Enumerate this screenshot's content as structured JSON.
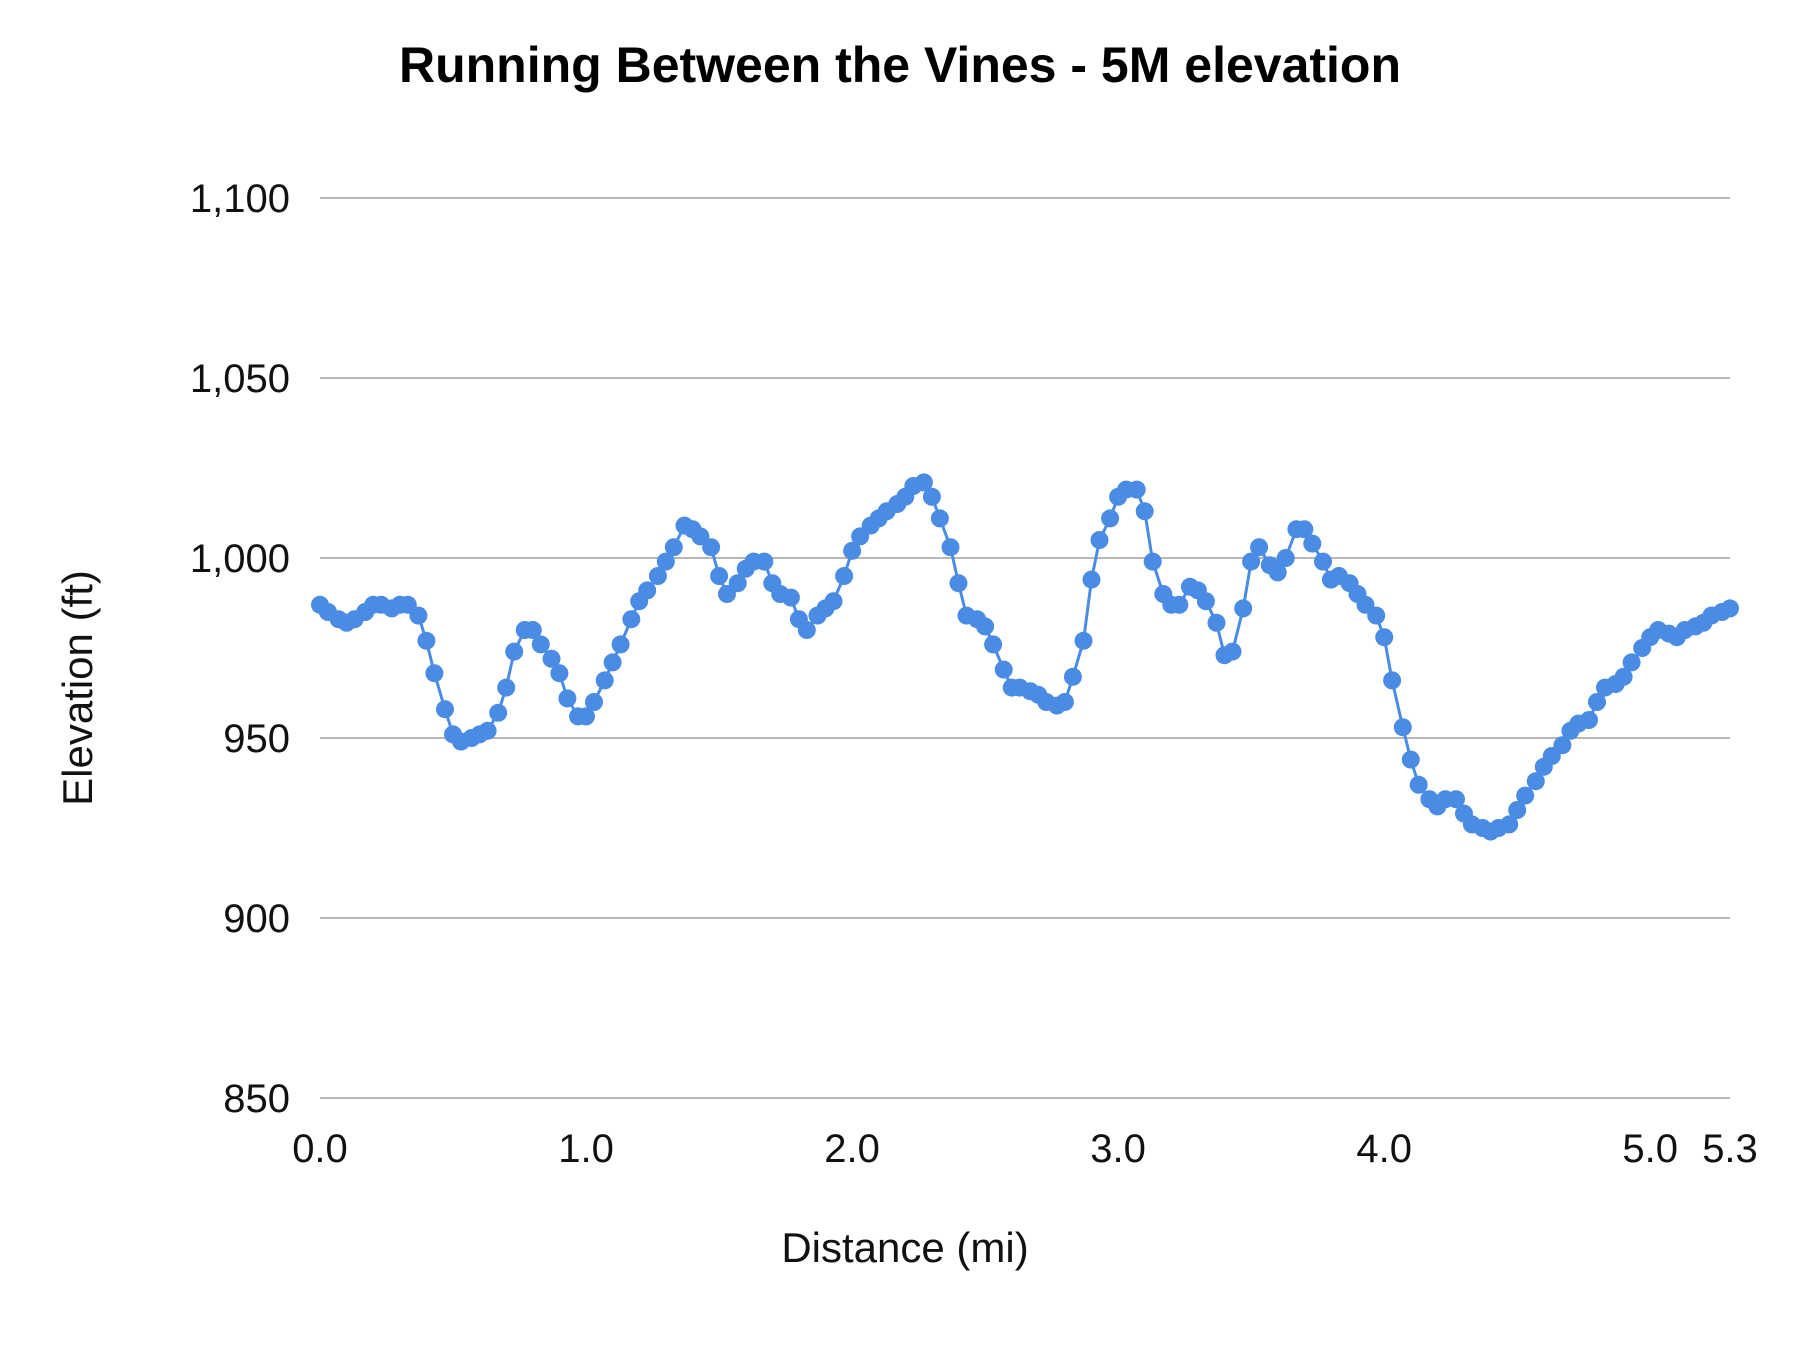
{
  "chart_data": {
    "type": "line",
    "title": "Running Between the Vines - 5M elevation",
    "xlabel": "Distance (mi)",
    "ylabel": "Elevation (ft)",
    "ylim": [
      850,
      1100
    ],
    "xlim": [
      0,
      5.3
    ],
    "y_ticks": [
      "850",
      "900",
      "950",
      "1,000",
      "1,050",
      "1,100"
    ],
    "x_ticks": [
      "0.0",
      "1.0",
      "2.0",
      "3.0",
      "4.0",
      "5.0",
      "5.3"
    ],
    "grid": true,
    "legend": "none",
    "markers": true,
    "series": [
      {
        "color": "#4a8be3",
        "x": [
          0.0,
          0.03,
          0.07,
          0.1,
          0.13,
          0.17,
          0.2,
          0.23,
          0.27,
          0.3,
          0.33,
          0.37,
          0.4,
          0.43,
          0.47,
          0.5,
          0.53,
          0.57,
          0.6,
          0.63,
          0.67,
          0.7,
          0.73,
          0.77,
          0.8,
          0.83,
          0.87,
          0.9,
          0.93,
          0.97,
          1.0,
          1.03,
          1.07,
          1.1,
          1.13,
          1.17,
          1.2,
          1.23,
          1.27,
          1.3,
          1.33,
          1.37,
          1.4,
          1.43,
          1.47,
          1.5,
          1.53,
          1.57,
          1.6,
          1.63,
          1.67,
          1.7,
          1.73,
          1.77,
          1.8,
          1.83,
          1.87,
          1.9,
          1.93,
          1.97,
          2.0,
          2.03,
          2.07,
          2.1,
          2.13,
          2.17,
          2.2,
          2.23,
          2.27,
          2.3,
          2.33,
          2.37,
          2.4,
          2.43,
          2.47,
          2.5,
          2.53,
          2.57,
          2.6,
          2.63,
          2.67,
          2.7,
          2.73,
          2.77,
          2.8,
          2.83,
          2.87,
          2.9,
          2.93,
          2.97,
          3.0,
          3.03,
          3.07,
          3.1,
          3.13,
          3.17,
          3.2,
          3.23,
          3.27,
          3.3,
          3.33,
          3.37,
          3.4,
          3.43,
          3.47,
          3.5,
          3.53,
          3.57,
          3.6,
          3.63,
          3.67,
          3.7,
          3.73,
          3.77,
          3.8,
          3.83,
          3.87,
          3.9,
          3.93,
          3.97,
          4.0,
          4.03,
          4.07,
          4.1,
          4.13,
          4.17,
          4.2,
          4.23,
          4.27,
          4.3,
          4.33,
          4.37,
          4.4,
          4.43,
          4.47,
          4.5,
          4.53,
          4.57,
          4.6,
          4.63,
          4.67,
          4.7,
          4.73,
          4.77,
          4.8,
          4.83,
          4.87,
          4.9,
          4.93,
          4.97,
          5.0,
          5.03,
          5.07,
          5.1,
          5.13,
          5.17,
          5.2,
          5.23,
          5.27,
          5.3
        ],
        "values": [
          987,
          985,
          983,
          982,
          983,
          985,
          987,
          987,
          986,
          987,
          987,
          984,
          977,
          968,
          958,
          951,
          949,
          950,
          951,
          952,
          957,
          964,
          974,
          980,
          980,
          976,
          972,
          968,
          961,
          956,
          956,
          960,
          966,
          971,
          976,
          983,
          988,
          991,
          995,
          999,
          1003,
          1009,
          1008,
          1006,
          1003,
          995,
          990,
          993,
          997,
          999,
          999,
          993,
          990,
          989,
          983,
          980,
          984,
          986,
          988,
          995,
          1002,
          1006,
          1009,
          1011,
          1013,
          1015,
          1017,
          1020,
          1021,
          1017,
          1011,
          1003,
          993,
          984,
          983,
          981,
          976,
          969,
          964,
          964,
          963,
          962,
          960,
          959,
          960,
          967,
          977,
          994,
          1005,
          1011,
          1017,
          1019,
          1019,
          1013,
          999,
          990,
          987,
          987,
          992,
          991,
          988,
          982,
          973,
          974,
          986,
          999,
          1003,
          998,
          996,
          1000,
          1008,
          1008,
          1004,
          999,
          994,
          995,
          993,
          990,
          987,
          984,
          978,
          966,
          953,
          944,
          937,
          933,
          931,
          933,
          933,
          929,
          926,
          925,
          924,
          925,
          926,
          930,
          934,
          938,
          942,
          945,
          948,
          952,
          954,
          955,
          960,
          964,
          965,
          967,
          971,
          975,
          978,
          980,
          979,
          978,
          980,
          981,
          982,
          984,
          985,
          986
        ]
      }
    ]
  }
}
